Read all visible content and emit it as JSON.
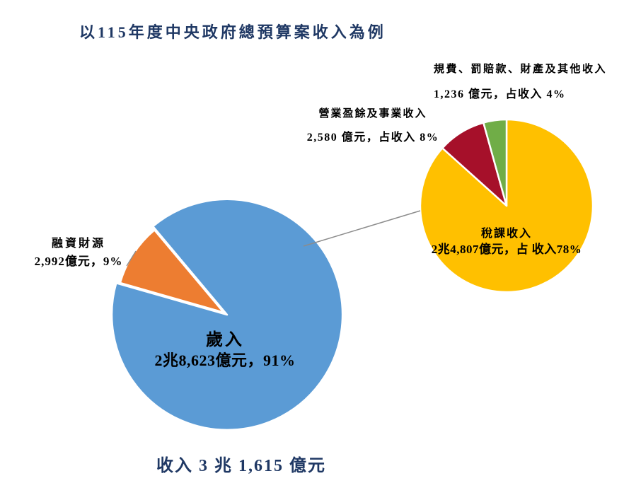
{
  "page": {
    "title": "以115年度中央政府總預算案收入為例",
    "total_label": "收入 3 兆 1,615 億元"
  },
  "colors": {
    "title_navy": "#1F3864",
    "label_black": "#000000",
    "connector_gray": "#8C8C8C",
    "slice_stroke": "#FFFFFF"
  },
  "chart_data": {
    "type": "pie",
    "variant": "pie-of-pie",
    "title": "以115年度中央政府總預算案收入為例",
    "unit": "億元",
    "total": {
      "label": "收入 3 兆 1,615 億元",
      "value_yi": 31615
    },
    "legend": "none",
    "layout": "main pie lower-left, secondary breakdown pie upper-right, gray connector line between them",
    "main_pie": {
      "start_angle_deg": 130,
      "slices": [
        {
          "id": "revenue",
          "name": "歲入",
          "value_yi": 28623,
          "percent": 91,
          "color": "#5B9BD5",
          "label": "歲入",
          "detail": "2兆8,623億元，91%"
        },
        {
          "id": "financing",
          "name": "融資財源",
          "value_yi": 2992,
          "percent": 9,
          "color": "#ED7D31",
          "label": "融資財源",
          "detail": "2,992億元，9%",
          "exploded": true
        }
      ]
    },
    "secondary_pie": {
      "breakdown_of": "歲入",
      "start_angle_deg": 90,
      "slices": [
        {
          "id": "tax",
          "name": "稅課收入",
          "value_yi": 24807,
          "percent_of_total": 78,
          "color": "#FFC000",
          "label": "稅課收入",
          "detail": "2兆4,807億元，占 收入78%"
        },
        {
          "id": "enterprise-surplus",
          "name": "營業盈餘及事業收入",
          "value_yi": 2580,
          "percent_of_total": 8,
          "color": "#A6102A",
          "label": "營業盈餘及事業收入",
          "detail": "2,580 億元，占收入 8%"
        },
        {
          "id": "fees-other",
          "name": "規費、罰賠款、財產及其他收入",
          "value_yi": 1236,
          "percent_of_total": 4,
          "color": "#70AD47",
          "label": "規費、罰賠款、財產及其他收入",
          "detail": "1,236 億元，占收入 4%"
        }
      ]
    }
  }
}
